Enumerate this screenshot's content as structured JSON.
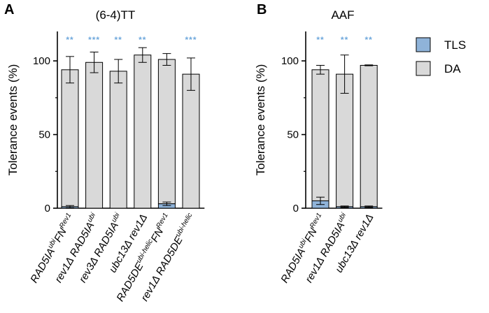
{
  "colors": {
    "tls": "#8fb3d9",
    "da": "#d9d9d9",
    "stroke": "#000000",
    "sig": "#6fa8dc"
  },
  "legend": [
    {
      "key": "tls",
      "label": "TLS"
    },
    {
      "key": "da",
      "label": "DA"
    }
  ],
  "chart_data": [
    {
      "type": "bar",
      "stacked": true,
      "panel_letter": "A",
      "title": "(6-4)TT",
      "ylabel": "Tolerance events (%)",
      "ylim": [
        0,
        120
      ],
      "yticks": [
        0,
        50,
        100
      ],
      "categories": [
        {
          "base": "RAD5IA",
          "sup1": "ubi",
          "mid": "FN",
          "sup2": "Rev1"
        },
        {
          "base": "rev1Δ RAD5IA",
          "sup1": "ubi",
          "mid": "",
          "sup2": ""
        },
        {
          "base": "rev3Δ RAD5IA",
          "sup1": "ubi",
          "mid": "",
          "sup2": ""
        },
        {
          "base": "ubc13Δ rev1Δ",
          "sup1": "",
          "mid": "",
          "sup2": ""
        },
        {
          "base": "RAD5DE",
          "sup1": "ubi-helic",
          "mid": "FN",
          "sup2": "Rev1"
        },
        {
          "base": "rev1Δ RAD5DE",
          "sup1": "ubi-helic",
          "mid": "",
          "sup2": ""
        }
      ],
      "series": [
        {
          "name": "TLS",
          "values": [
            1,
            0,
            0,
            0,
            3,
            0
          ],
          "errors": [
            0.8,
            0,
            0,
            0,
            1.2,
            0
          ]
        },
        {
          "name": "DA",
          "values": [
            93,
            99,
            93,
            104,
            98,
            91
          ],
          "errors": [
            9,
            7,
            8,
            5,
            4,
            11
          ]
        }
      ],
      "significance": [
        "**",
        "***",
        "**",
        "**",
        "",
        "***"
      ]
    },
    {
      "type": "bar",
      "stacked": true,
      "panel_letter": "B",
      "title": "AAF",
      "ylabel": "Tolerance events (%)",
      "ylim": [
        0,
        120
      ],
      "yticks": [
        0,
        50,
        100
      ],
      "categories": [
        {
          "base": "RAD5IA",
          "sup1": "ubi",
          "mid": "FN",
          "sup2": "Rev1"
        },
        {
          "base": "rev1Δ RAD5IA",
          "sup1": "ubi",
          "mid": "",
          "sup2": ""
        },
        {
          "base": "ubc13Δ rev1Δ",
          "sup1": "",
          "mid": "",
          "sup2": ""
        }
      ],
      "series": [
        {
          "name": "TLS",
          "values": [
            5,
            1,
            1
          ],
          "errors": [
            2.5,
            0.5,
            0.5
          ]
        },
        {
          "name": "DA",
          "values": [
            89,
            90,
            96
          ],
          "errors": [
            3,
            13,
            0.3
          ]
        }
      ],
      "significance": [
        "**",
        "**",
        "**"
      ]
    }
  ]
}
